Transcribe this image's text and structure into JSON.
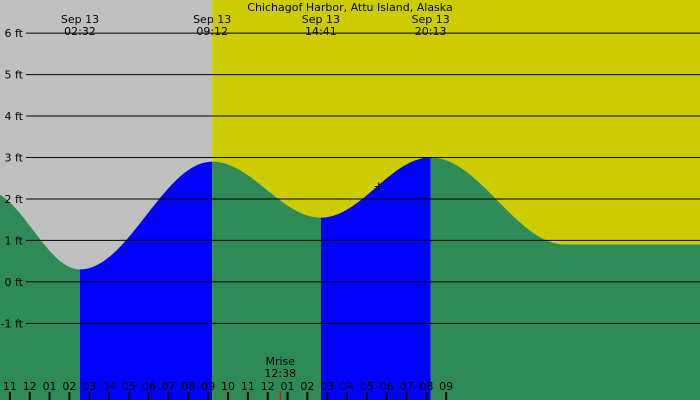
{
  "chart_data": {
    "type": "area",
    "title": "Chichagof Harbor, Attu Island, Alaska",
    "unit": "ft",
    "y_ticks": [
      {
        "value": 6,
        "label": "6 ft"
      },
      {
        "value": 5,
        "label": "5 ft"
      },
      {
        "value": 4,
        "label": "4 ft"
      },
      {
        "value": 3,
        "label": "3 ft"
      },
      {
        "value": 2,
        "label": "2 ft"
      },
      {
        "value": 1,
        "label": "1 ft"
      },
      {
        "value": 0,
        "label": "0 ft"
      },
      {
        "value": -1,
        "label": "-1 ft"
      }
    ],
    "ylim": [
      -2.85,
      6.8
    ],
    "xlim_hours": [
      -1.5,
      33.8
    ],
    "hour_ticks": [
      {
        "hour": -1,
        "label": "11"
      },
      {
        "hour": 0,
        "label": "12"
      },
      {
        "hour": 1,
        "label": "01"
      },
      {
        "hour": 2,
        "label": "02"
      },
      {
        "hour": 3,
        "label": "03"
      },
      {
        "hour": 4,
        "label": "04"
      },
      {
        "hour": 5,
        "label": "05"
      },
      {
        "hour": 6,
        "label": "06"
      },
      {
        "hour": 7,
        "label": "07"
      },
      {
        "hour": 8,
        "label": "08"
      },
      {
        "hour": 9,
        "label": "09"
      },
      {
        "hour": 10,
        "label": "10"
      },
      {
        "hour": 11,
        "label": "11"
      },
      {
        "hour": 12,
        "label": "12"
      },
      {
        "hour": 13,
        "label": "01"
      },
      {
        "hour": 14,
        "label": "02"
      },
      {
        "hour": 15,
        "label": "03"
      },
      {
        "hour": 16,
        "label": "04"
      },
      {
        "hour": 17,
        "label": "05"
      },
      {
        "hour": 18,
        "label": "06"
      },
      {
        "hour": 19,
        "label": "07"
      },
      {
        "hour": 20,
        "label": "08"
      },
      {
        "hour": 21,
        "label": "09"
      }
    ],
    "tides": [
      {
        "date": "Sep 13",
        "time": "02:32",
        "hour": 2.533,
        "height": 0.3,
        "type": "low"
      },
      {
        "date": "Sep 13",
        "time": "09:12",
        "hour": 9.2,
        "height": 2.9,
        "type": "high"
      },
      {
        "date": "Sep 13",
        "time": "14:41",
        "hour": 14.683,
        "height": 1.55,
        "type": "low"
      },
      {
        "date": "Sep 13",
        "time": "20:13",
        "hour": 20.217,
        "height": 3.0,
        "type": "high"
      }
    ],
    "tide_start": {
      "hour": -2.2,
      "height": 2.2
    },
    "tide_end": {
      "hour": 27.0,
      "height": 0.9
    },
    "daylight": {
      "start_hour": 9.2
    },
    "moonrise": {
      "label": "Mrise",
      "time": "12:38",
      "hour": 12.633
    },
    "now_marker": {
      "hour": 17.6,
      "height": 2.3
    },
    "colors": {
      "night": "#c0c0c0",
      "day": "#cccc00",
      "falling": "#2e8b57",
      "rising": "#0000ff",
      "gridline": "#000000",
      "moon_tick": "#cc0000"
    }
  }
}
